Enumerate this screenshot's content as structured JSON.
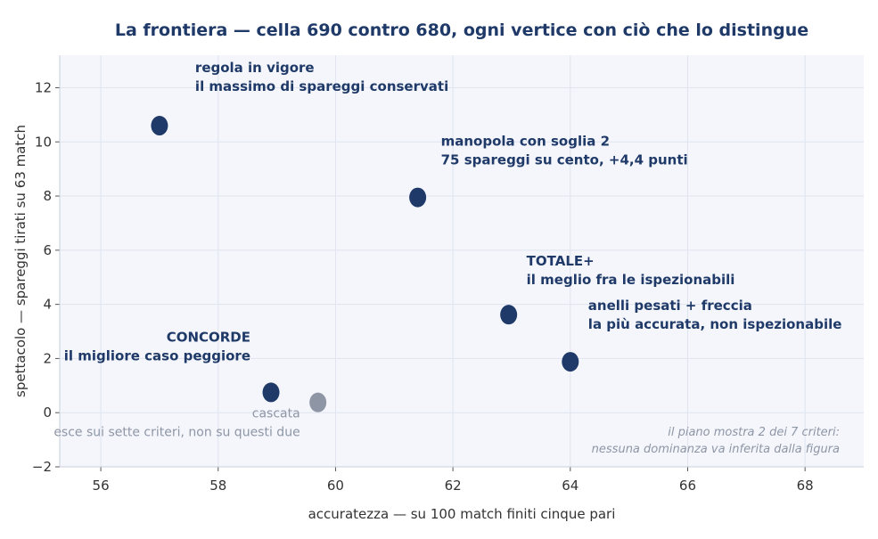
{
  "chart_data": {
    "type": "scatter",
    "title": "La frontiera — cella 690 contro 680, ogni vertice con ciò che lo distingue",
    "xlabel": "accuratezza — su 100 match finiti cinque pari",
    "ylabel": "spettacolo — spareggi tirati su 63 match",
    "xlim": [
      55.3,
      69.0
    ],
    "ylim": [
      -2,
      13.2
    ],
    "xticks": [
      "56",
      "58",
      "60",
      "62",
      "64",
      "66",
      "68"
    ],
    "yticks": [
      "−2",
      "0",
      "2",
      "4",
      "6",
      "8",
      "10",
      "12"
    ],
    "grid": true,
    "colors": {
      "highlight": "#1f3a68",
      "muted": "#8e96a6",
      "plot_bg": "#f4f6fb",
      "grid": "#dfe4ee"
    },
    "points": [
      {
        "x": 57.0,
        "y": 10.6,
        "style": "highlight",
        "lines": [
          "regola in vigore",
          "il massimo di spareggi conservati"
        ]
      },
      {
        "x": 61.4,
        "y": 7.95,
        "style": "highlight",
        "lines": [
          "manopola con soglia 2",
          "75 spareggi su cento, +4,4 punti"
        ]
      },
      {
        "x": 62.95,
        "y": 3.62,
        "style": "highlight",
        "lines": [
          "TOTALE+",
          "il meglio fra le ispezionabili"
        ]
      },
      {
        "x": 64.0,
        "y": 1.88,
        "style": "highlight",
        "lines": [
          "anelli pesati + freccia",
          "la più accurata, non ispezionabile"
        ]
      },
      {
        "x": 58.9,
        "y": 0.75,
        "style": "highlight",
        "lines": [
          "CONCORDE",
          "il migliore caso peggiore"
        ]
      },
      {
        "x": 59.7,
        "y": 0.38,
        "style": "muted",
        "lines": [
          "cascata",
          "esce sui sette criteri, non su questi due"
        ]
      }
    ],
    "note": [
      "il piano mostra 2 dei 7 criteri:",
      "nessuna dominanza va inferita dalla figura"
    ]
  }
}
